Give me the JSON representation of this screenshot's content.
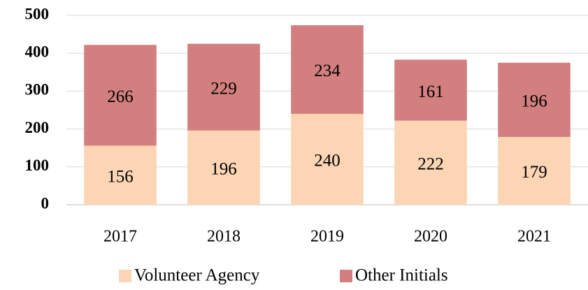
{
  "chart_data": {
    "type": "stacked_bar",
    "categories": [
      "2017",
      "2018",
      "2019",
      "2020",
      "2021"
    ],
    "series": [
      {
        "name": "Volunteer Agency",
        "color": "#fcd5b5",
        "values": [
          156,
          196,
          240,
          222,
          179
        ]
      },
      {
        "name": "Other Initials",
        "color": "#d37f7f",
        "values": [
          266,
          229,
          234,
          161,
          196
        ]
      }
    ],
    "ylim": [
      0,
      500
    ],
    "yticks": [
      0,
      100,
      200,
      300,
      400,
      500
    ],
    "grid": true,
    "legend": "bottom"
  }
}
